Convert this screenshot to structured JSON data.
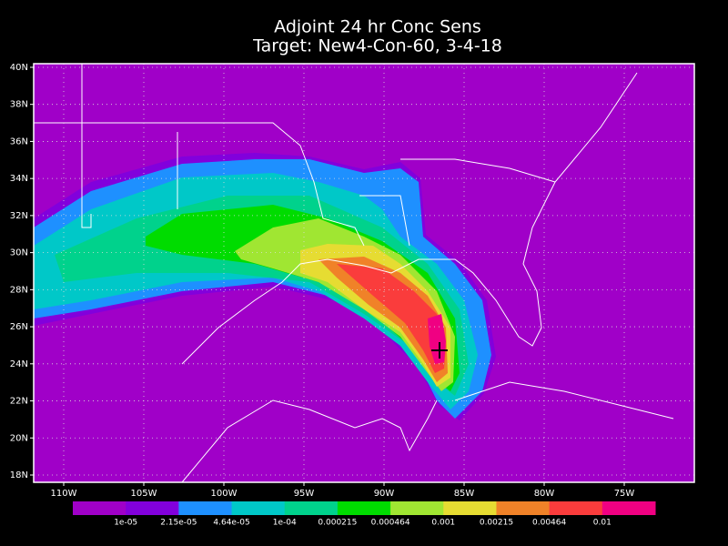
{
  "title": [
    "Adjoint 24 hr Conc Sens",
    "Target: New4-Con-60, 3-4-18"
  ],
  "lat_labels": [
    "18N",
    "20N",
    "22N",
    "24N",
    "26N",
    "28N",
    "30N",
    "32N",
    "34N",
    "36N",
    "38N",
    "40N"
  ],
  "lon_labels": [
    "110W",
    "105W",
    "100W",
    "95W",
    "90W",
    "85W",
    "80W",
    "75W"
  ],
  "colorbar": {
    "labels": [
      "1e-05",
      "2.15e-05",
      "4.64e-05",
      "1e-04",
      "0.000215",
      "0.000464",
      "0.001",
      "0.00215",
      "0.00464",
      "0.01"
    ],
    "colors": [
      "#a000c8",
      "#8200dc",
      "#1e90ff",
      "#00c8c8",
      "#00d28c",
      "#00dc00",
      "#a0e632",
      "#e6dc32",
      "#f08228",
      "#fa3c3c",
      "#f00082"
    ]
  }
}
